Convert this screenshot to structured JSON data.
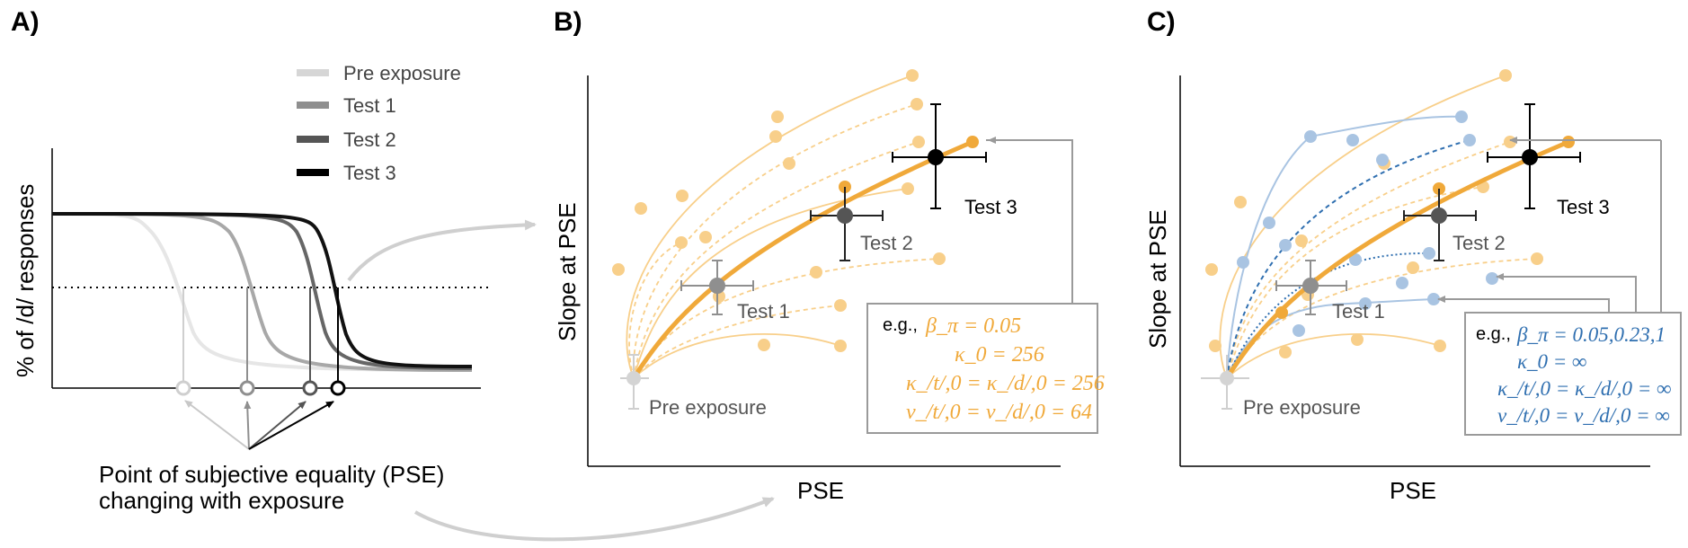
{
  "panels": {
    "a": {
      "letter": "A)",
      "ylabel": "% of /d/ responses",
      "legend": [
        {
          "name": "Pre exposure",
          "color": "#d6d6d6"
        },
        {
          "name": "Test 1",
          "color": "#8f8f8f"
        },
        {
          "name": "Test 2",
          "color": "#555555"
        },
        {
          "name": "Test 3",
          "color": "#000000"
        }
      ],
      "caption_line1": "Point of subjective equality (PSE)",
      "caption_line2": "changing with exposure"
    },
    "b": {
      "letter": "B)",
      "xlabel": "PSE",
      "ylabel": "Slope at PSE",
      "labels": {
        "pre": "Pre exposure",
        "t1": "Test 1",
        "t2": "Test 2",
        "t3": "Test 3"
      },
      "box": {
        "eg": "e.g.,",
        "line1": "β_π = 0.05",
        "line2": "κ_0 = 256",
        "line3": "κ_/t/,0 = κ_/d/,0 = 256",
        "line4": "ν_/t/,0 = ν_/d/,0 = 64",
        "color": "#f0a93a"
      }
    },
    "c": {
      "letter": "C)",
      "xlabel": "PSE",
      "ylabel": "Slope at PSE",
      "labels": {
        "pre": "Pre exposure",
        "t1": "Test 1",
        "t2": "Test 2",
        "t3": "Test 3"
      },
      "box": {
        "eg": "e.g.,",
        "line1": "β_π = 0.05,0.23,1",
        "line2": "κ_0 = ∞",
        "line3": "κ_/t/,0 = κ_/d/,0 = ∞",
        "line4": "ν_/t/,0 = ν_/d/,0 = ∞",
        "color": "#2f6fb0"
      }
    }
  },
  "colors": {
    "orange": "#f0a93a",
    "orange_light": "#f8cf8a",
    "blue": "#2f6fb0",
    "blue_light": "#a9c4e2"
  }
}
